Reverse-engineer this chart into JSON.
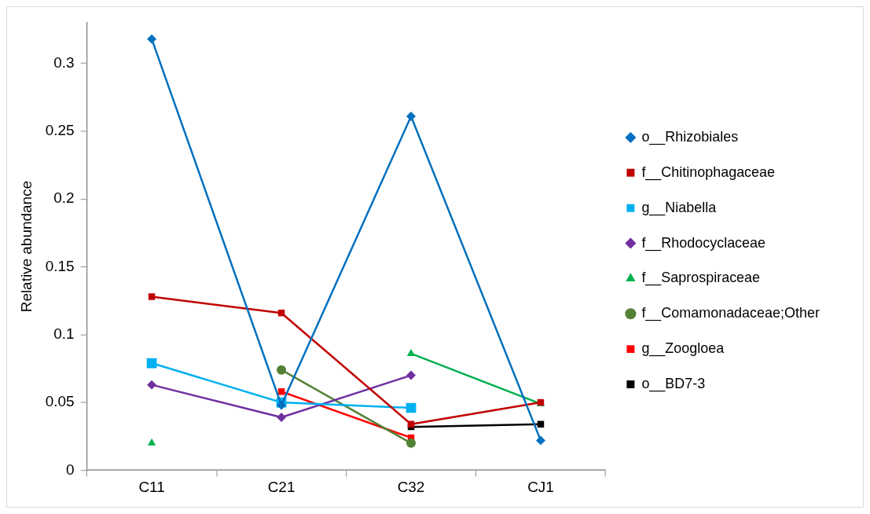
{
  "chart_data": {
    "type": "line",
    "ylabel": "Relative abundance",
    "categories": [
      "C11",
      "C21",
      "C32",
      "CJ1"
    ],
    "ylim": [
      0,
      0.33
    ],
    "yticks": [
      0,
      0.05,
      0.1,
      0.15,
      0.2,
      0.25,
      0.3
    ],
    "grid": false,
    "legend": "right",
    "series": [
      {
        "name": "o__Rhizobiales",
        "color": "#0070c0",
        "marker": "diamond",
        "values": [
          0.318,
          0.048,
          0.261,
          0.022
        ]
      },
      {
        "name": "f__Chitinophagaceae",
        "color": "#c00000",
        "marker": "square",
        "values": [
          0.128,
          0.116,
          0.034,
          0.05
        ]
      },
      {
        "name": "g__Niabella",
        "color": "#00b0f0",
        "marker": "square",
        "values": [
          0.079,
          0.05,
          0.046,
          null
        ]
      },
      {
        "name": "f__Rhodocyclaceae",
        "color": "#7030a0",
        "marker": "diamond",
        "values": [
          0.063,
          0.039,
          0.07,
          null
        ]
      },
      {
        "name": "f__Saprospiraceae",
        "color": "#00b050",
        "marker": "triangle",
        "values": [
          0.02,
          null,
          0.086,
          0.049
        ]
      },
      {
        "name": "f__Comamonadaceae;Other",
        "color": "#538135",
        "marker": "circle",
        "values": [
          null,
          0.074,
          0.02,
          null
        ]
      },
      {
        "name": "g__Zoogloea",
        "color": "#ff0000",
        "marker": "square",
        "values": [
          null,
          0.058,
          0.024,
          null
        ]
      },
      {
        "name": "o__BD7-3",
        "color": "#000000",
        "marker": "square",
        "values": [
          null,
          null,
          0.032,
          0.034
        ]
      }
    ]
  }
}
